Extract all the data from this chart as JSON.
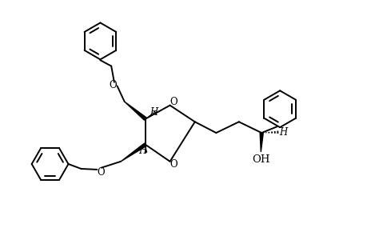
{
  "bg_color": "#ffffff",
  "line_color": "#000000",
  "line_width": 1.4,
  "font_size": 8.5,
  "fig_width": 4.6,
  "fig_height": 3.0,
  "dpi": 100,
  "xlim": [
    0,
    10
  ],
  "ylim": [
    0,
    6.5
  ]
}
